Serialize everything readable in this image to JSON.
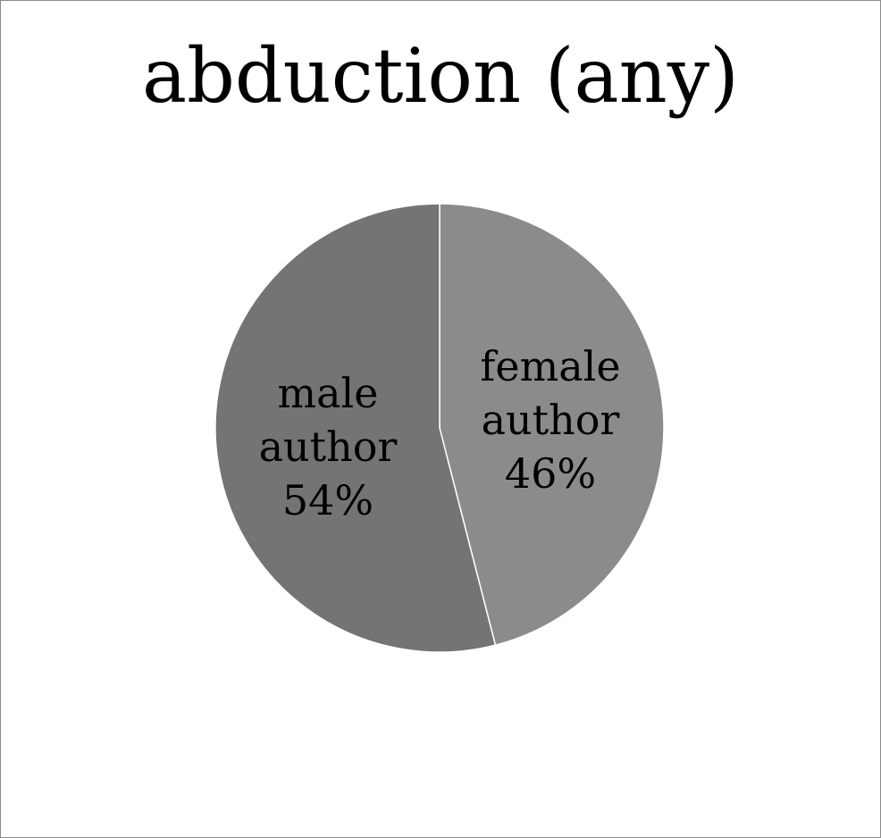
{
  "chart_data": {
    "type": "pie",
    "title": "abduction (any)",
    "categories": [
      "female author",
      "male author"
    ],
    "values": [
      46,
      54
    ],
    "labels": [
      {
        "lines": [
          "female",
          "author",
          "46%"
        ]
      },
      {
        "lines": [
          "male",
          "author",
          "54%"
        ]
      }
    ],
    "colors": [
      "#8b8b8b",
      "#747474"
    ],
    "slice_border_color": "#ffffff",
    "legend": "none"
  }
}
